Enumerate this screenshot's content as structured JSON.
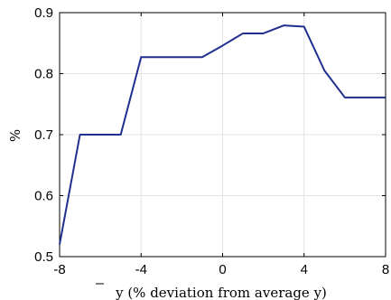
{
  "chart_data": {
    "type": "line",
    "title": "",
    "xlabel": "y (% deviation from average y)",
    "ylabel": "%",
    "xlim": [
      -8,
      8
    ],
    "ylim": [
      0.5,
      0.9
    ],
    "xticks": [
      -8,
      -4,
      0,
      4,
      8
    ],
    "xtick_labels": [
      "-8",
      "-4",
      "0",
      "4",
      "8"
    ],
    "yticks": [
      0.5,
      0.6,
      0.7,
      0.8,
      0.9
    ],
    "ytick_labels": [
      "0.5",
      "0.6",
      "0.7",
      "0.8",
      "0.9"
    ],
    "grid": true,
    "colors": {
      "line": "#1f2f8f",
      "grid": "#e3e3e3",
      "axis": "#000000"
    },
    "series": [
      {
        "x": [
          -8,
          -7,
          -6,
          -5,
          -4,
          -3,
          -2,
          -1,
          0,
          1,
          2,
          3,
          4,
          5,
          6,
          7,
          8
        ],
        "y": [
          0.52,
          0.7,
          0.7,
          0.7,
          0.827,
          0.827,
          0.827,
          0.827,
          0.846,
          0.866,
          0.866,
          0.879,
          0.877,
          0.805,
          0.761,
          0.761,
          0.761
        ]
      }
    ]
  }
}
